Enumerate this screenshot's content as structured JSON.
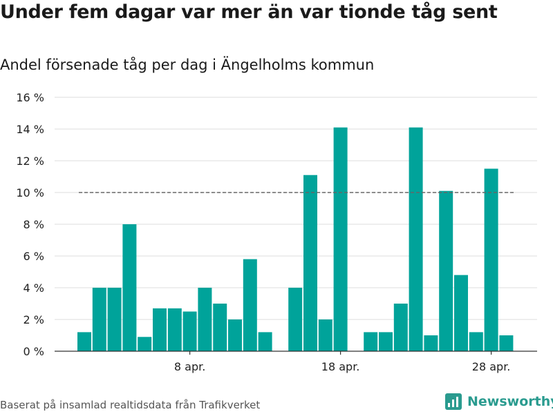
{
  "title": "Under fem dagar var mer än var tionde tåg sent",
  "subtitle": "Andel försenade tåg per dag i Ängelholms kommun",
  "source": "Baserat på insamlad realtidsdata från Trafikverket",
  "brand": "Newsworthy",
  "colors": {
    "bar": "#00a39a",
    "reference": "#666666",
    "grid": "#dddddd",
    "brand": "#2a9b8f"
  },
  "chart_data": {
    "type": "bar",
    "x": [
      "2024-04-01",
      "2024-04-02",
      "2024-04-03",
      "2024-04-04",
      "2024-04-05",
      "2024-04-06",
      "2024-04-07",
      "2024-04-08",
      "2024-04-09",
      "2024-04-10",
      "2024-04-11",
      "2024-04-12",
      "2024-04-13",
      "2024-04-14",
      "2024-04-15",
      "2024-04-16",
      "2024-04-17",
      "2024-04-18",
      "2024-04-19",
      "2024-04-20",
      "2024-04-21",
      "2024-04-22",
      "2024-04-23",
      "2024-04-24",
      "2024-04-25",
      "2024-04-26",
      "2024-04-27",
      "2024-04-28",
      "2024-04-29",
      "2024-04-30"
    ],
    "values": [
      1.2,
      4.0,
      4.0,
      8.0,
      0.9,
      2.7,
      2.7,
      2.5,
      4.0,
      3.0,
      2.0,
      5.8,
      1.2,
      null,
      4.0,
      11.1,
      2.0,
      14.1,
      null,
      1.2,
      1.2,
      3.0,
      14.1,
      1.0,
      10.1,
      4.8,
      1.2,
      11.5,
      1.0,
      null
    ],
    "ylim": [
      0,
      16
    ],
    "yticks": [
      "0 %",
      "2 %",
      "4 %",
      "6 %",
      "8 %",
      "10 %",
      "12 %",
      "14 %",
      "16 %"
    ],
    "ytick_values": [
      0,
      2,
      4,
      6,
      8,
      10,
      12,
      14,
      16
    ],
    "xticks": [
      {
        "label": "8 apr.",
        "index": 7
      },
      {
        "label": "18 apr.",
        "index": 17
      },
      {
        "label": "28 apr.",
        "index": 27
      }
    ],
    "reference_line": {
      "value": 10,
      "style": "dashed"
    },
    "grid": true
  }
}
